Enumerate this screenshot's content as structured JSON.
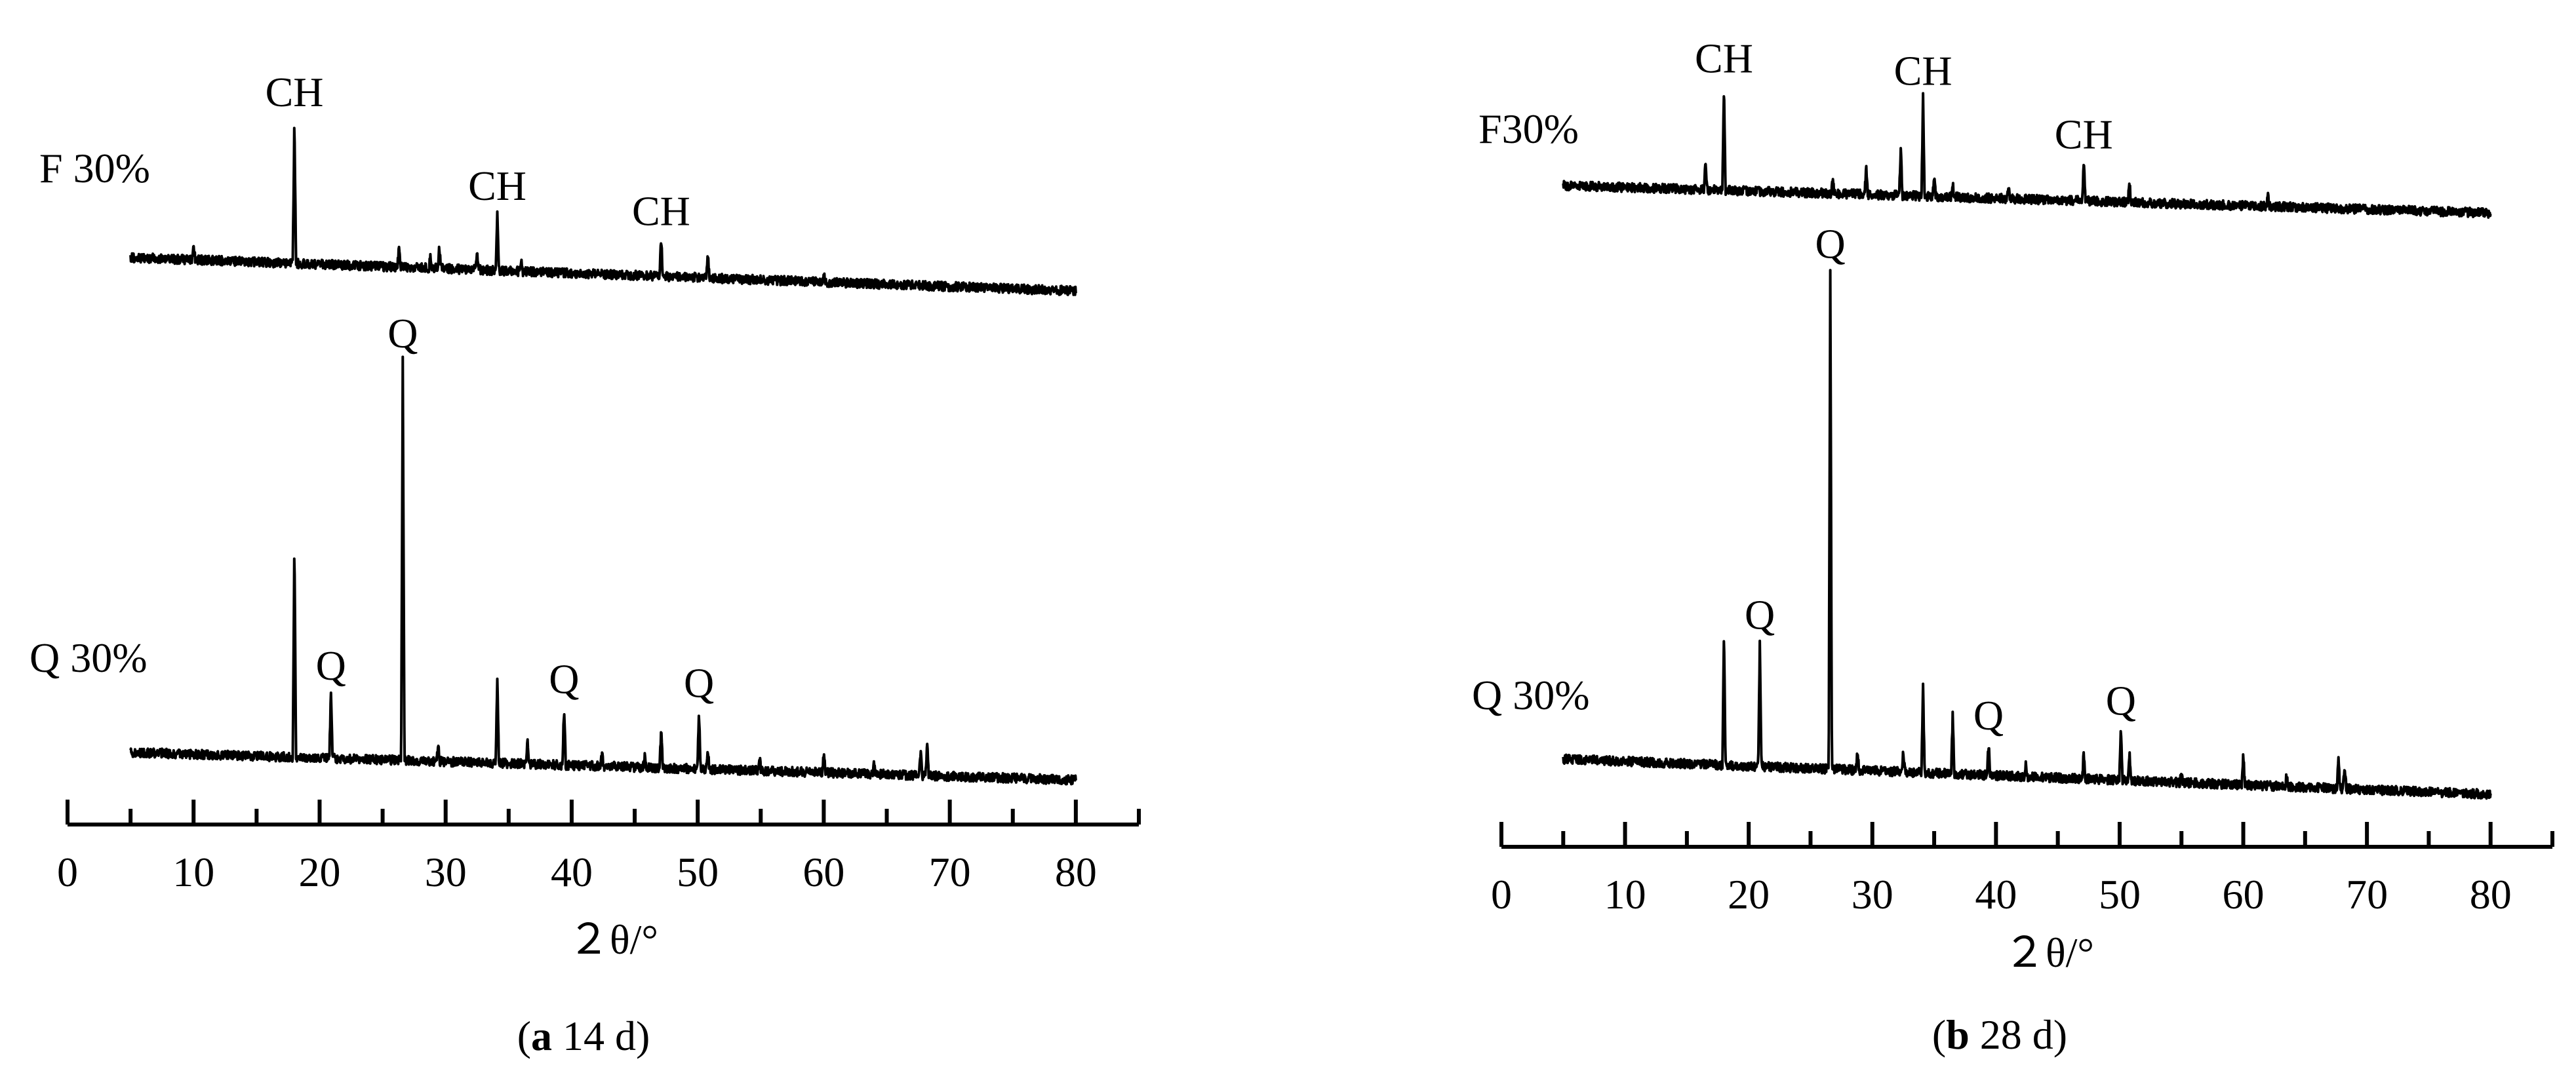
{
  "chart_data": [
    {
      "type": "line",
      "panel_label_letter": "a",
      "panel_label_rest": " 14 d",
      "xlabel": "２θ/°",
      "xlim": [
        0,
        85
      ],
      "xticks": [
        0,
        10,
        20,
        30,
        40,
        50,
        60,
        70,
        80
      ],
      "x_data_range": [
        5,
        80
      ],
      "series": [
        {
          "name": "F 30%",
          "baseline_start": 0.7,
          "baseline_end": 0.0,
          "peaks": [
            [
              10,
              0.2
            ],
            [
              18,
              2.2
            ],
            [
              26.3,
              0.3
            ],
            [
              28.8,
              0.2
            ],
            [
              29.5,
              0.35
            ],
            [
              32.5,
              0.25
            ],
            [
              34.1,
              0.9
            ],
            [
              36,
              0.15
            ],
            [
              47.1,
              0.6
            ],
            [
              50.8,
              0.35
            ],
            [
              60,
              0.1
            ]
          ],
          "annotations": [
            {
              "x": 18,
              "label": "CH"
            },
            {
              "x": 34.1,
              "label": "CH"
            },
            {
              "x": 47.1,
              "label": "CH"
            }
          ]
        },
        {
          "name": "Q 30%",
          "baseline_start": 0.6,
          "baseline_end": 0.0,
          "peaks": [
            [
              18,
              3.3
            ],
            [
              20.9,
              1.0
            ],
            [
              26.6,
              6.1
            ],
            [
              29.4,
              0.25
            ],
            [
              34.1,
              1.3
            ],
            [
              36.5,
              0.35
            ],
            [
              39.4,
              0.9
            ],
            [
              42.4,
              0.2
            ],
            [
              45.8,
              0.2
            ],
            [
              47.1,
              0.6
            ],
            [
              50.1,
              0.9
            ],
            [
              50.8,
              0.3
            ],
            [
              54.9,
              0.2
            ],
            [
              60,
              0.3
            ],
            [
              64,
              0.15
            ],
            [
              67.7,
              0.4
            ],
            [
              68.2,
              0.5
            ]
          ],
          "annotations": [
            {
              "x": 26.6,
              "label": "Q"
            },
            {
              "x": 20.9,
              "label": "Q"
            },
            {
              "x": 39.4,
              "label": "Q"
            },
            {
              "x": 50.1,
              "label": "Q"
            }
          ]
        }
      ]
    },
    {
      "type": "line",
      "panel_label_letter": "b",
      "panel_label_rest": " 28 d",
      "xlabel": "２θ/°",
      "xlim": [
        0,
        85
      ],
      "xticks": [
        0,
        10,
        20,
        30,
        40,
        50,
        60,
        70,
        80
      ],
      "x_data_range": [
        5,
        80
      ],
      "series": [
        {
          "name": "F30%",
          "baseline_start": 0.5,
          "baseline_end": 0.0,
          "peaks": [
            [
              16.5,
              0.4
            ],
            [
              18,
              1.6
            ],
            [
              26.8,
              0.2
            ],
            [
              29.5,
              0.4
            ],
            [
              32.3,
              0.7
            ],
            [
              34.1,
              1.5
            ],
            [
              35,
              0.3
            ],
            [
              36.5,
              0.2
            ],
            [
              41,
              0.2
            ],
            [
              47.1,
              0.6
            ],
            [
              50.8,
              0.3
            ],
            [
              62,
              0.15
            ]
          ],
          "annotations": [
            {
              "x": 18,
              "label": "CH"
            },
            {
              "x": 34.1,
              "label": "CH"
            },
            {
              "x": 47.1,
              "label": "CH"
            }
          ]
        },
        {
          "name": "Q 30%",
          "baseline_start": 0.5,
          "baseline_end": 0.0,
          "peaks": [
            [
              18,
              2.0
            ],
            [
              20.9,
              1.9
            ],
            [
              26.6,
              7.6
            ],
            [
              28.8,
              0.3
            ],
            [
              32.5,
              0.3
            ],
            [
              34.1,
              1.3
            ],
            [
              36.5,
              0.9
            ],
            [
              39.4,
              0.5
            ],
            [
              42.4,
              0.2
            ],
            [
              47.1,
              0.4
            ],
            [
              50.1,
              0.8
            ],
            [
              50.8,
              0.4
            ],
            [
              55,
              0.15
            ],
            [
              60,
              0.45
            ],
            [
              63.5,
              0.15
            ],
            [
              67.7,
              0.5
            ],
            [
              68.2,
              0.35
            ]
          ],
          "annotations": [
            {
              "x": 20.9,
              "label": "Q"
            },
            {
              "x": 26.6,
              "label": "Q"
            },
            {
              "x": 39.4,
              "label": "Q"
            },
            {
              "x": 50.1,
              "label": "Q"
            }
          ]
        }
      ]
    }
  ]
}
